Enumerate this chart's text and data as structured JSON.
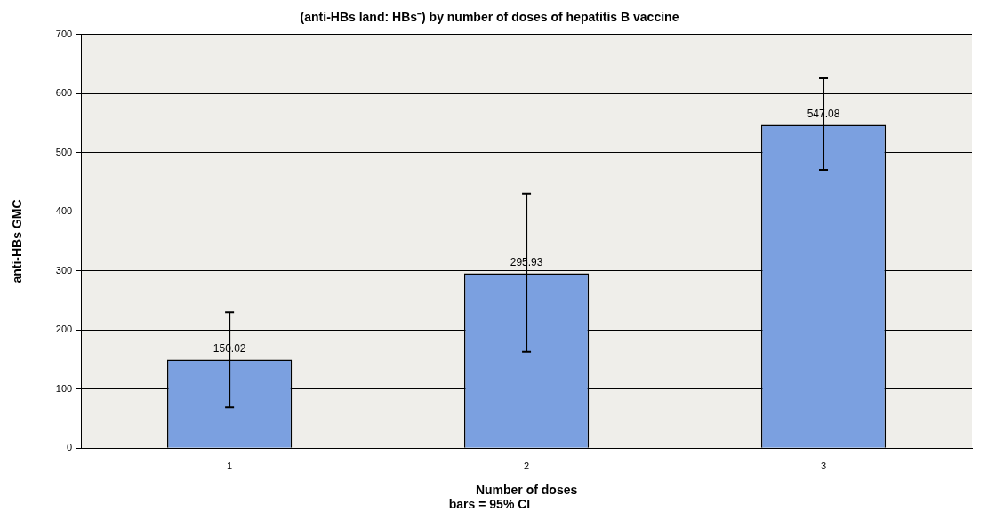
{
  "chart_data": {
    "type": "bar",
    "title": "(anti-HBs land: HBs⁻) by number of doses of hepatitis B vaccine",
    "xlabel": "Number of doses",
    "ylabel": "anti-HBs GMC",
    "annotations": [
      "bars = 95% CI"
    ],
    "categories": [
      "1",
      "2",
      "3"
    ],
    "values": [
      150.02,
      295.93,
      547.08
    ],
    "color": "#7ba0e0",
    "errors": [
      [
        69,
        230
      ],
      [
        163,
        431
      ],
      [
        471,
        626
      ]
    ],
    "data_labels": true,
    "ylim": [
      0,
      700
    ],
    "yticks": [
      0,
      100,
      200,
      300,
      400,
      500,
      600,
      700
    ],
    "grid": "y",
    "legend": false
  }
}
